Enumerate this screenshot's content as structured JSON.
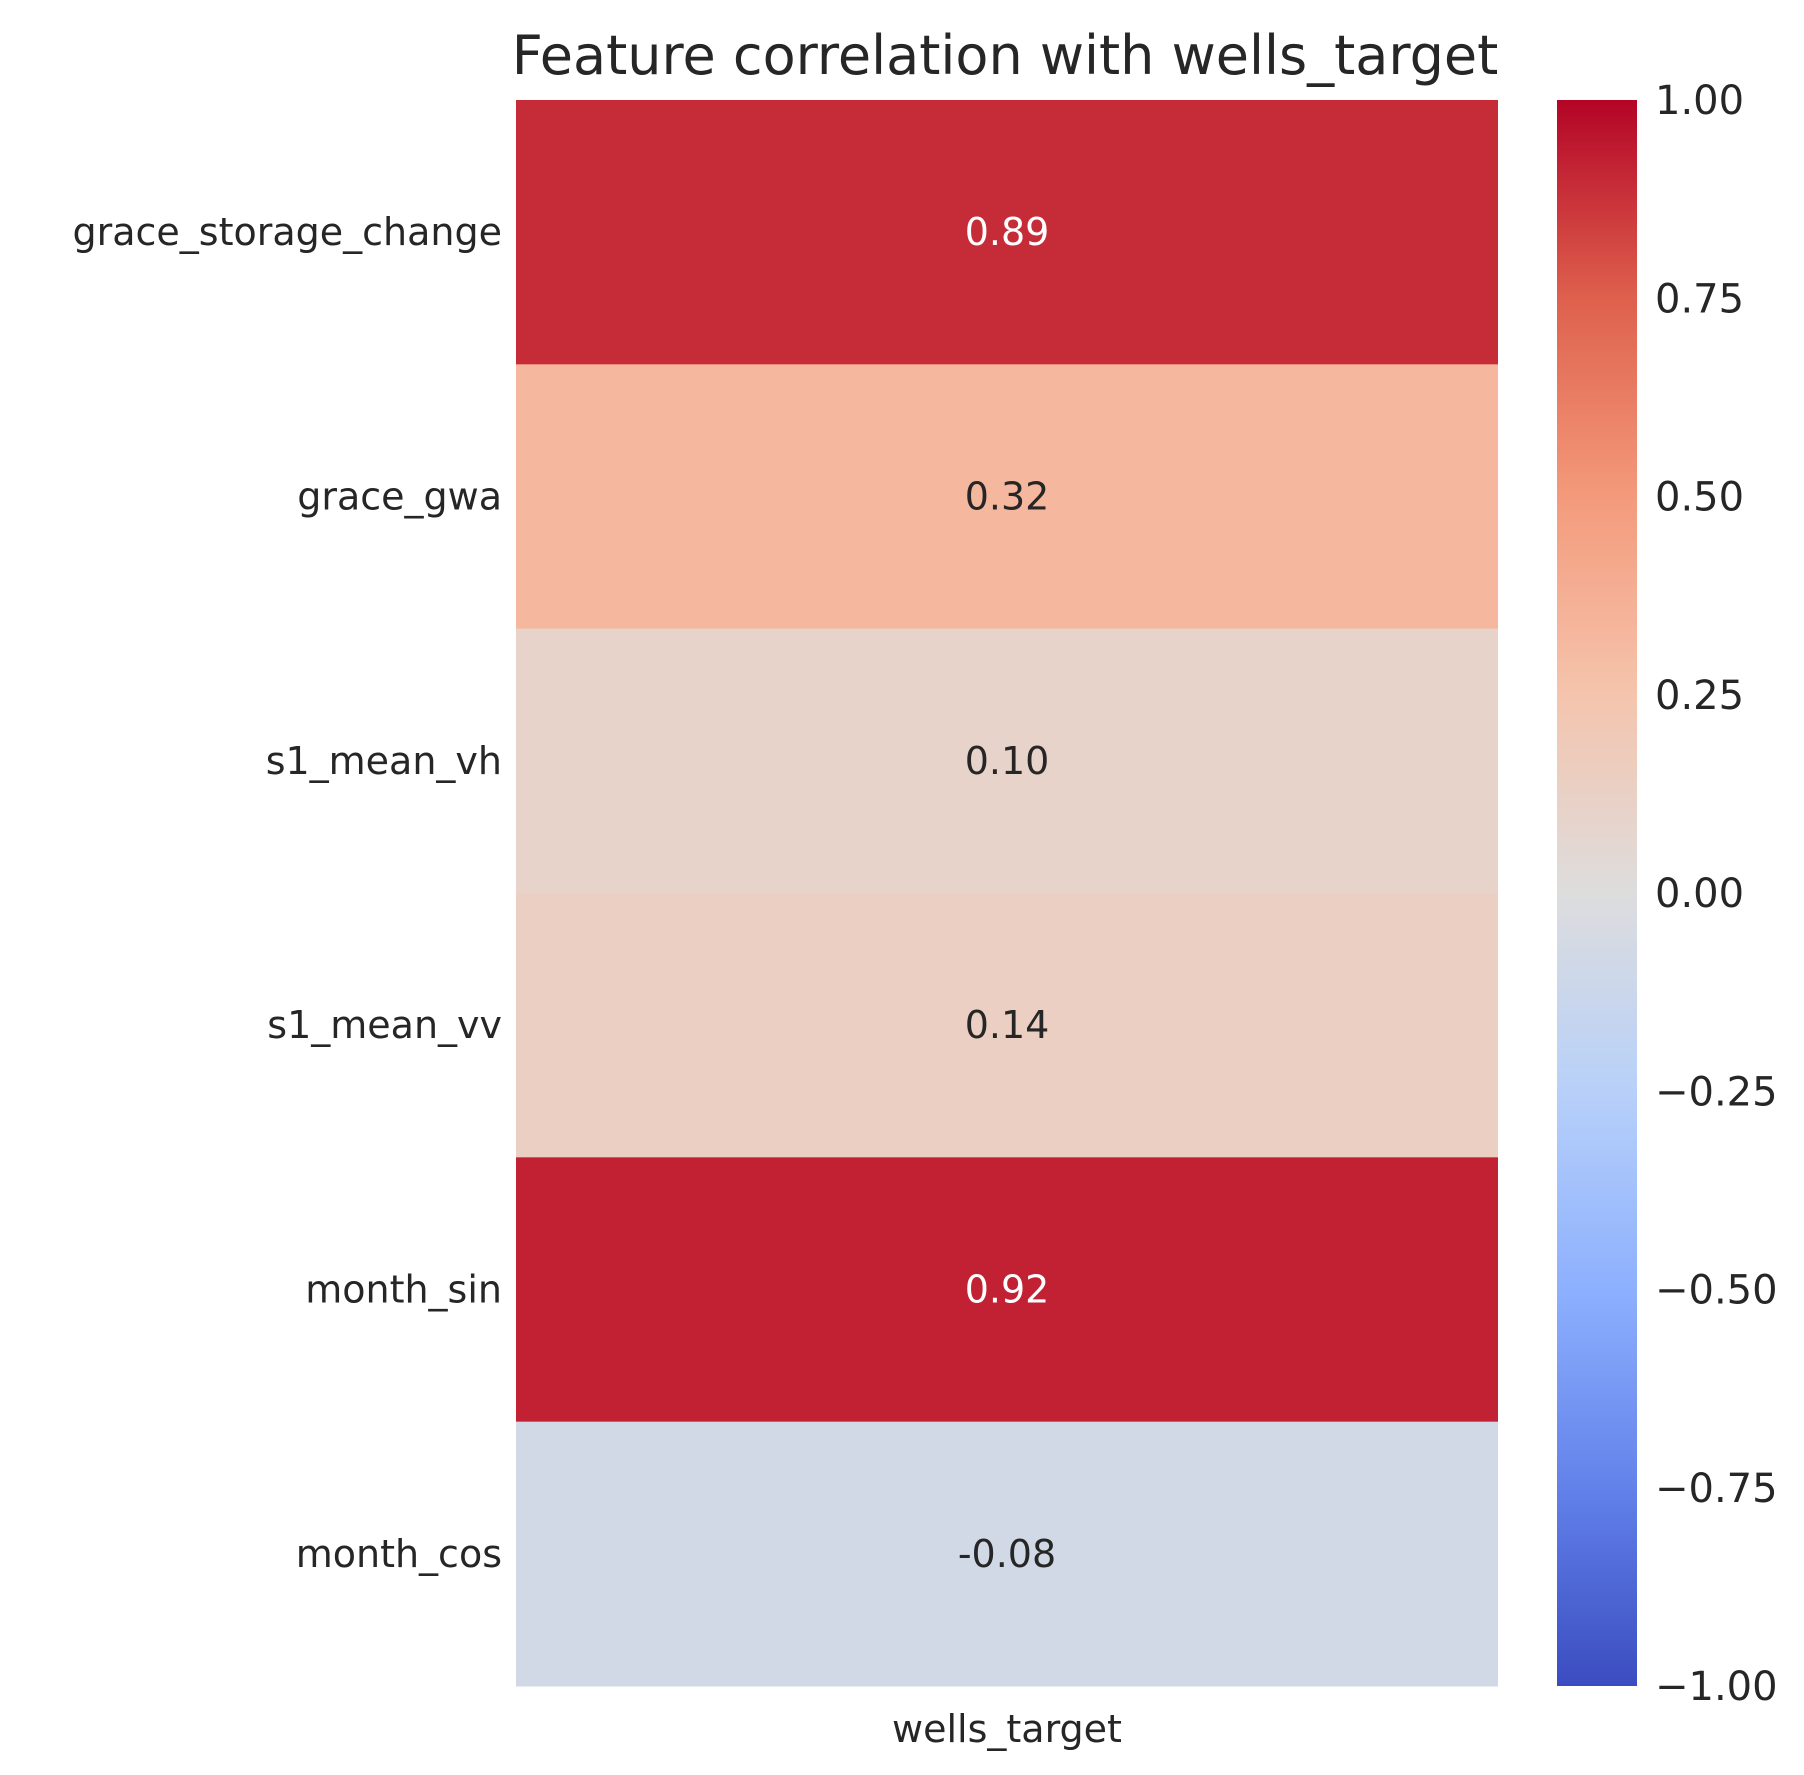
{
  "chart_data": {
    "type": "heatmap",
    "title": "Feature correlation with wells_target",
    "rows": [
      "grace_storage_change",
      "grace_gwa",
      "s1_mean_vh",
      "s1_mean_vv",
      "month_sin",
      "month_cos"
    ],
    "columns": [
      "wells_target"
    ],
    "values": [
      [
        0.89
      ],
      [
        0.32
      ],
      [
        0.1
      ],
      [
        0.14
      ],
      [
        0.92
      ],
      [
        -0.08
      ]
    ],
    "cell_labels": [
      "0.89",
      "0.32",
      "0.10",
      "0.14",
      "0.92",
      "-0.08"
    ],
    "colormap": "coolwarm",
    "vmin": -1.0,
    "vmax": 1.0,
    "colorbar": {
      "ticks": [
        1.0,
        0.75,
        0.5,
        0.25,
        0.0,
        -0.25,
        -0.5,
        -0.75,
        -1.0
      ],
      "tick_labels": [
        "1.00",
        "0.75",
        "0.50",
        "0.25",
        "0.00",
        "−0.25",
        "−0.50",
        "−0.75",
        "−1.00"
      ]
    },
    "grid": false
  }
}
